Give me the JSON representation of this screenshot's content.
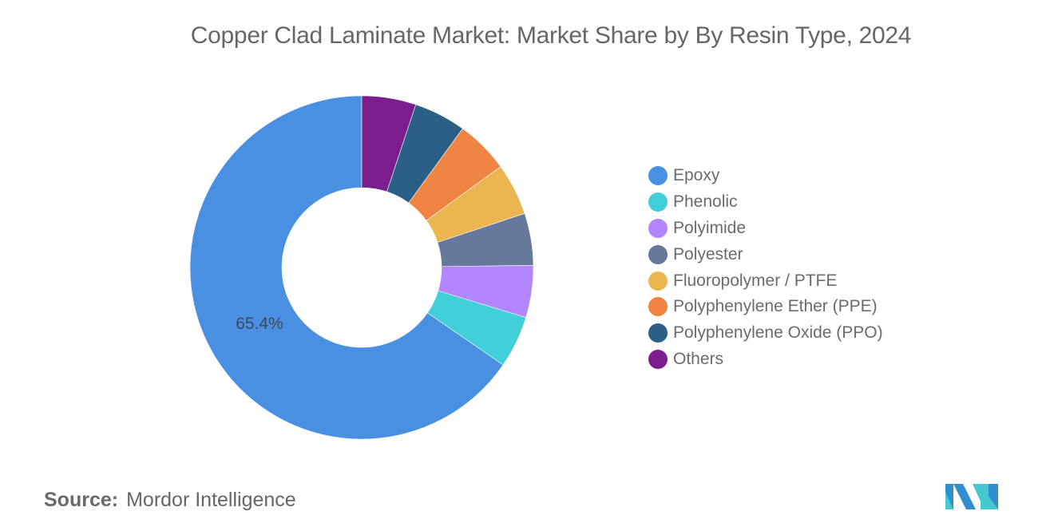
{
  "title": "Copper Clad Laminate Market: Market Share by By Resin Type, 2024",
  "source": {
    "label": "Source:",
    "value": "Mordor Intelligence"
  },
  "logo": {
    "name": "mordor-intelligence-logo"
  },
  "chart_data": {
    "type": "pie",
    "variant": "donut",
    "title": "Copper Clad Laminate Market: Market Share by By Resin Type, 2024",
    "categories": [
      "Epoxy",
      "Phenolic",
      "Polyimide",
      "Polyester",
      "Fluoropolymer / PTFE",
      "Polyphenylene Ether (PPE)",
      "Polyphenylene Oxide (PPO)",
      "Others"
    ],
    "values": [
      65.4,
      4.9,
      4.9,
      4.9,
      4.9,
      5.0,
      4.9,
      5.1
    ],
    "colors": [
      "#4a90e2",
      "#41cfd9",
      "#b286fd",
      "#66789c",
      "#ebb54f",
      "#f08442",
      "#2c5f85",
      "#7b1f8f"
    ],
    "data_labels": [
      {
        "category": "Epoxy",
        "text": "65.4%"
      }
    ],
    "legend_position": "right",
    "direction": "counterclockwise-from-top",
    "note": "Only the Epoxy share (65.4%) is labeled; other slice values are estimated from the visual arc sizes."
  },
  "legend": {
    "items": [
      {
        "label": "Epoxy",
        "color": "#4a90e2"
      },
      {
        "label": "Phenolic",
        "color": "#41cfd9"
      },
      {
        "label": "Polyimide",
        "color": "#b286fd"
      },
      {
        "label": "Polyester",
        "color": "#66789c"
      },
      {
        "label": "Fluoropolymer / PTFE",
        "color": "#ebb54f"
      },
      {
        "label": "Polyphenylene Ether (PPE)",
        "color": "#f08442"
      },
      {
        "label": "Polyphenylene Oxide (PPO)",
        "color": "#2c5f85"
      },
      {
        "label": "Others",
        "color": "#7b1f8f"
      }
    ]
  }
}
